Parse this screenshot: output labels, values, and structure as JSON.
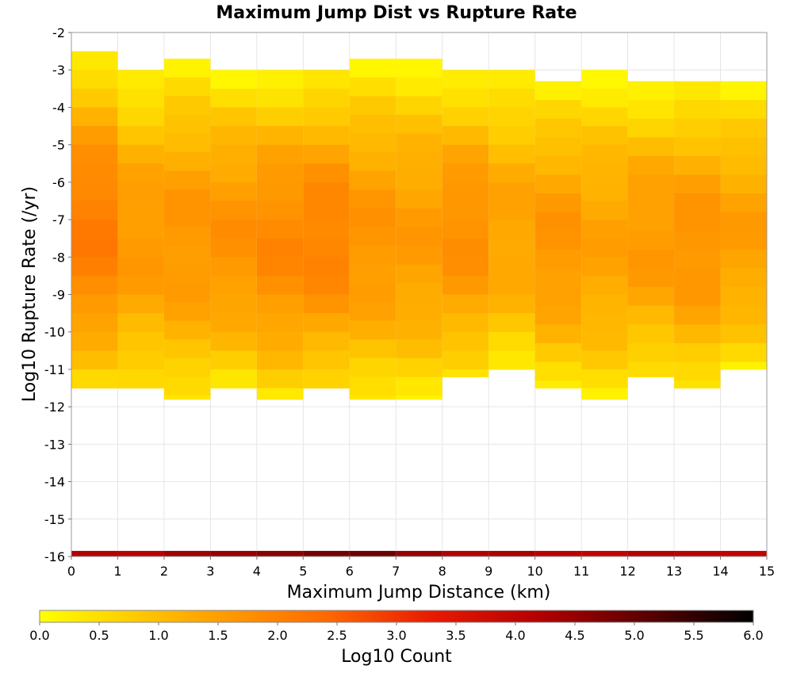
{
  "chart_data": {
    "type": "heatmap",
    "title": "Maximum Jump Dist vs Rupture Rate",
    "xlabel": "Maximum Jump Distance (km)",
    "ylabel": "Log10 Rupture Rate (/yr)",
    "colorbar_label": "Log10 Count",
    "xlim": [
      0,
      15
    ],
    "ylim": [
      -16,
      -2
    ],
    "clim": [
      0,
      6
    ],
    "x_ticks": [
      0,
      1,
      2,
      3,
      4,
      5,
      6,
      7,
      8,
      9,
      10,
      11,
      12,
      13,
      14,
      15
    ],
    "y_ticks": [
      -2,
      -3,
      -4,
      -5,
      -6,
      -7,
      -8,
      -9,
      -10,
      -11,
      -12,
      -13,
      -14,
      -15,
      -16
    ],
    "colorbar_ticks": [
      "0.0",
      "0.5",
      "1.0",
      "1.5",
      "2.0",
      "2.5",
      "3.0",
      "3.5",
      "4.0",
      "4.5",
      "5.0",
      "5.5",
      "6.0"
    ],
    "grid": true,
    "x_bin_width": 1,
    "y_bin_height": 0.5,
    "columns": [
      {
        "x": 0,
        "y_bins": [
          [
            -11.5,
            -2.5
          ]
        ],
        "value": 1.9
      },
      {
        "x": 1,
        "y_bins": [
          [
            -11.5,
            -3.0
          ]
        ],
        "value": 1.45
      },
      {
        "x": 2,
        "y_bins": [
          [
            -11.8,
            -2.7
          ]
        ],
        "value": 1.5
      },
      {
        "x": 3,
        "y_bins": [
          [
            -11.5,
            -3.0
          ]
        ],
        "value": 1.55
      },
      {
        "x": 4,
        "y_bins": [
          [
            -11.8,
            -3.0
          ]
        ],
        "value": 1.7
      },
      {
        "x": 5,
        "y_bins": [
          [
            -11.5,
            -3.0
          ]
        ],
        "value": 1.8
      },
      {
        "x": 6,
        "y_bins": [
          [
            -11.8,
            -2.7
          ]
        ],
        "value": 1.5
      },
      {
        "x": 7,
        "y_bins": [
          [
            -11.8,
            -2.7
          ]
        ],
        "value": 1.4
      },
      {
        "x": 8,
        "y_bins": [
          [
            -11.2,
            -3.0
          ]
        ],
        "value": 1.6
      },
      {
        "x": 9,
        "y_bins": [
          [
            -11.0,
            -3.0
          ]
        ],
        "value": 1.3
      },
      {
        "x": 10,
        "y_bins": [
          [
            -11.5,
            -3.3
          ]
        ],
        "value": 1.5
      },
      {
        "x": 11,
        "y_bins": [
          [
            -11.8,
            -3.0
          ]
        ],
        "value": 1.3
      },
      {
        "x": 12,
        "y_bins": [
          [
            -11.2,
            -3.3
          ]
        ],
        "value": 1.45
      },
      {
        "x": 13,
        "y_bins": [
          [
            -11.5,
            -3.3
          ]
        ],
        "value": 1.55
      },
      {
        "x": 14,
        "y_bins": [
          [
            -11.0,
            -3.3
          ]
        ],
        "value": 1.35
      }
    ],
    "bottom_row": {
      "y": -16,
      "values": [
        4.2,
        4.1,
        4.4,
        4.5,
        4.6,
        4.8,
        4.9,
        4.5,
        4.2,
        4.3,
        4.1,
        4.0,
        4.2,
        4.1,
        4.0
      ]
    }
  }
}
